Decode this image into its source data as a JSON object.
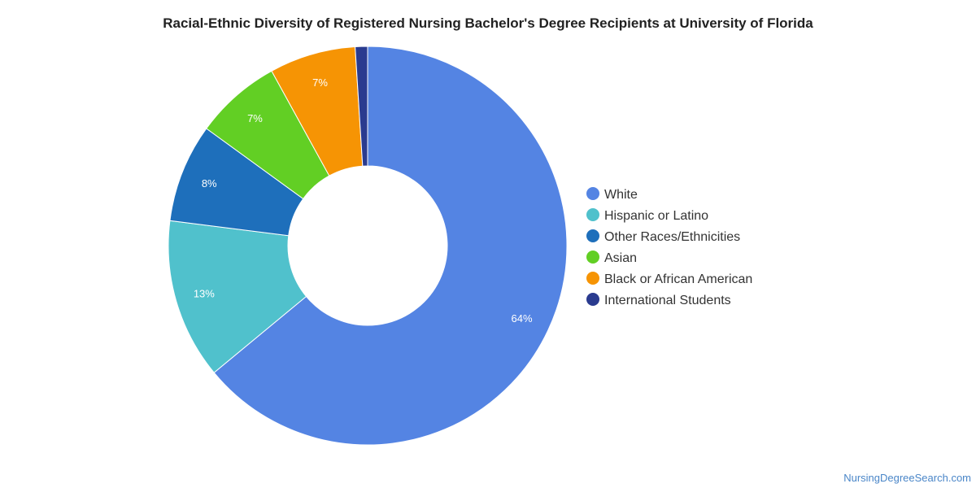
{
  "chart_data": {
    "type": "pie",
    "variant": "donut",
    "title": "Racial-Ethnic Diversity of Registered Nursing Bachelor's Degree Recipients at University of Florida",
    "legend_position": "right",
    "slices": [
      {
        "name": "White",
        "value": 64,
        "label": "64%",
        "color": "#5484e3"
      },
      {
        "name": "Hispanic or Latino",
        "value": 13,
        "label": "13%",
        "color": "#50c1cc"
      },
      {
        "name": "Other Races/Ethnicities",
        "value": 8,
        "label": "8%",
        "color": "#1e6fbb"
      },
      {
        "name": "Asian",
        "value": 7,
        "label": "7%",
        "color": "#62cf24"
      },
      {
        "name": "Black or African American",
        "value": 7,
        "label": "7%",
        "color": "#f69404"
      },
      {
        "name": "International Students",
        "value": 1,
        "label": "",
        "color": "#2a3b8f"
      }
    ]
  },
  "watermark": "NursingDegreeSearch.com"
}
